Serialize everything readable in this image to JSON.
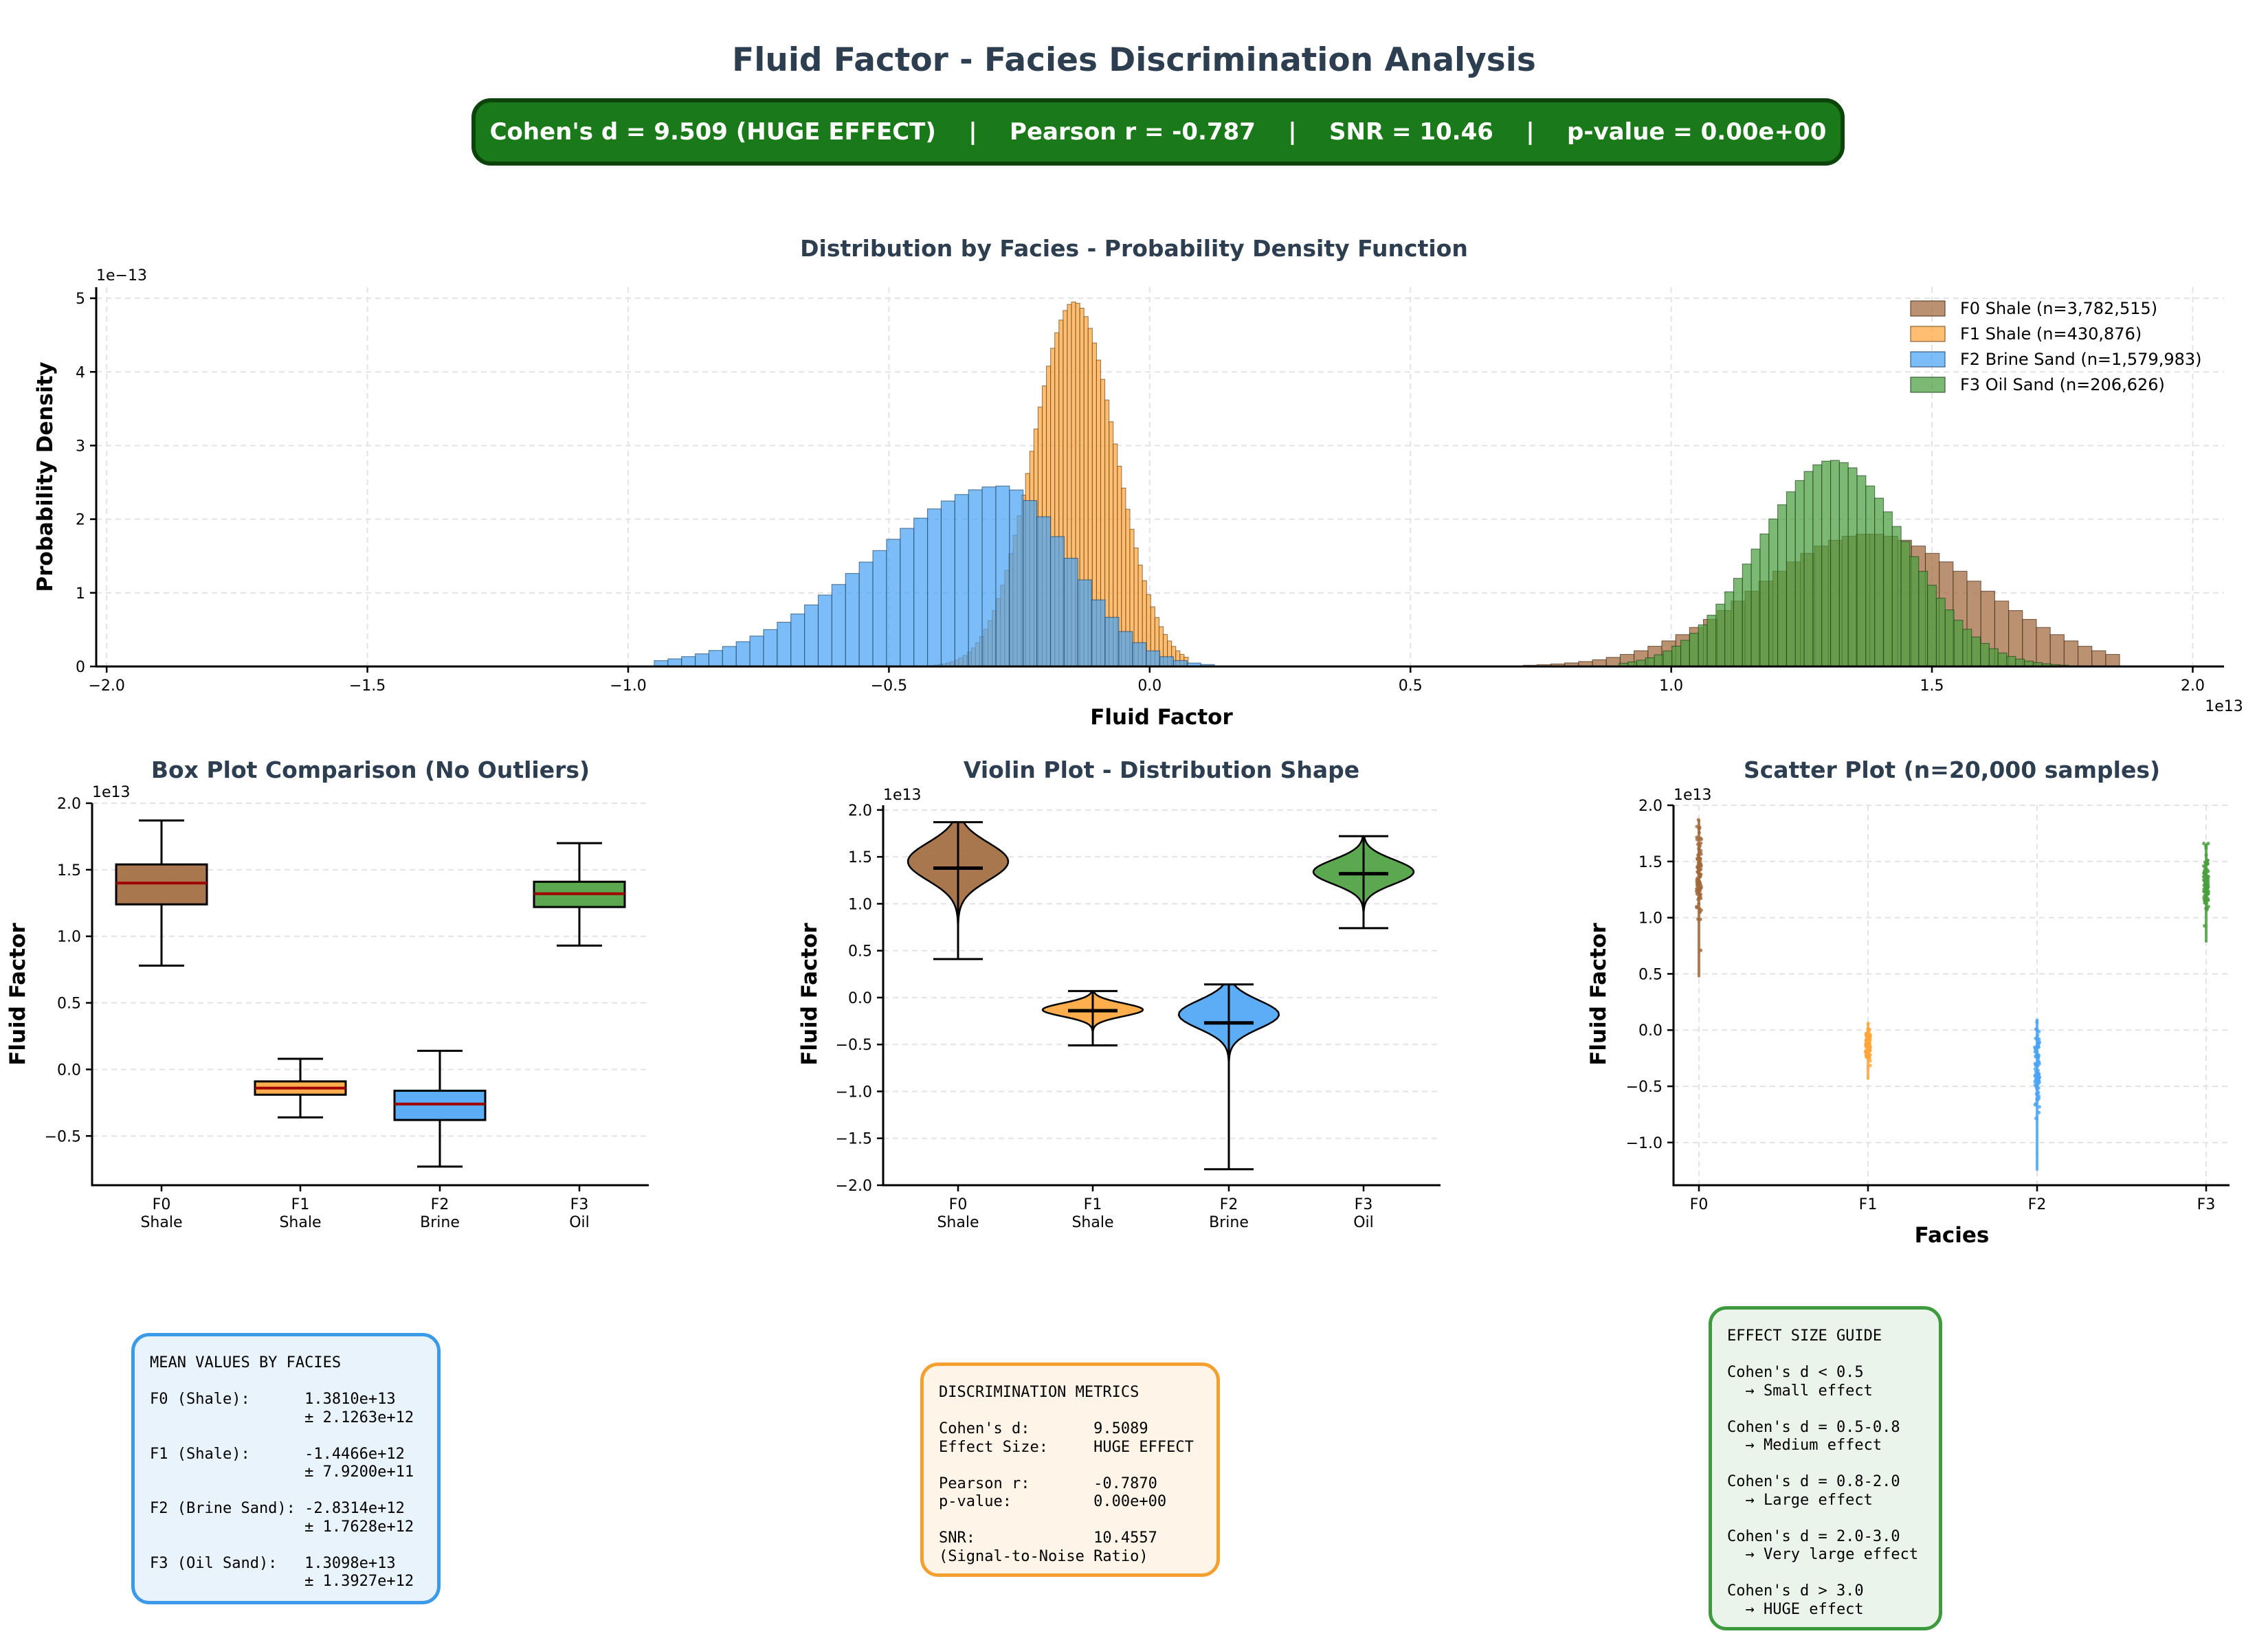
{
  "title": "Fluid Factor - Facies Discrimination Analysis",
  "banner": {
    "text": "Cohen's d = 9.509 (HUGE EFFECT)    |    Pearson r = -0.787    |    SNR = 10.46    |    p-value = 0.00e+00"
  },
  "colors": {
    "F0": "#a0683a",
    "F1": "#ffa53a",
    "F2": "#4aa3f5",
    "F3": "#4a9e3e",
    "median": "#a00000"
  },
  "chart_data": [
    {
      "type": "histogram",
      "title": "Distribution by Facies - Probability Density Function",
      "xlabel": "Fluid Factor",
      "ylabel": "Probability Density",
      "x_offset_label": "1e13",
      "y_offset_label": "1e−13",
      "xlim": [
        -2.02,
        2.06
      ],
      "ylim": [
        0,
        5.15
      ],
      "x_ticks": [
        -2.0,
        -1.5,
        -1.0,
        -0.5,
        0.0,
        0.5,
        1.0,
        1.5,
        2.0
      ],
      "x_tick_labels": [
        "−2.0",
        "−1.5",
        "−1.0",
        "−0.5",
        "0.0",
        "0.5",
        "1.0",
        "1.5",
        "2.0"
      ],
      "y_ticks": [
        0,
        1,
        2,
        3,
        4,
        5
      ],
      "y_tick_labels": [
        "0",
        "1",
        "2",
        "3",
        "4",
        "5"
      ],
      "grid": true,
      "legend_position": "top-right",
      "series": [
        {
          "id": "F0",
          "name": "F0 Shale (n=3,782,515)",
          "count": 3782515,
          "mean": 1.381,
          "std": 0.2126,
          "peak": 1.8,
          "range": [
            0.45,
            1.85
          ],
          "bin_width": 0.0266
        },
        {
          "id": "F1",
          "name": "F1 Shale (n=430,876)",
          "count": 430876,
          "mean": -0.1447,
          "std": 0.0792,
          "peak": 4.95,
          "range": [
            -0.55,
            0.07
          ],
          "bin_width": 0.008
        },
        {
          "id": "F2",
          "name": "F2 Brine Sand (n=1,579,983)",
          "count": 1579983,
          "mean": -0.2831,
          "std": 0.1763,
          "peak": 2.45,
          "range": [
            -0.95,
            0.1
          ],
          "bin_width": 0.0262,
          "skew": "left"
        },
        {
          "id": "F3",
          "name": "F3 Oil Sand (n=206,626)",
          "count": 206626,
          "mean": 1.3098,
          "std": 0.1393,
          "peak": 2.8,
          "range": [
            0.9,
            1.75
          ],
          "bin_width": 0.0169
        }
      ]
    },
    {
      "type": "box",
      "title": "Box Plot Comparison (No Outliers)",
      "ylabel": "Fluid Factor",
      "y_offset_label": "1e13",
      "ylim": [
        -0.87,
        2.0
      ],
      "y_ticks": [
        -0.5,
        0.0,
        0.5,
        1.0,
        1.5,
        2.0
      ],
      "y_tick_labels": [
        "−0.5",
        "0.0",
        "0.5",
        "1.0",
        "1.5",
        "2.0"
      ],
      "categories": [
        [
          "F0",
          "Shale"
        ],
        [
          "F1",
          "Shale"
        ],
        [
          "F2",
          "Brine"
        ],
        [
          "F3",
          "Oil"
        ]
      ],
      "boxes": [
        {
          "id": "F0",
          "whisker_low": 0.78,
          "q1": 1.24,
          "median": 1.4,
          "q3": 1.54,
          "whisker_high": 1.87
        },
        {
          "id": "F1",
          "whisker_low": -0.36,
          "q1": -0.19,
          "median": -0.14,
          "q3": -0.09,
          "whisker_high": 0.08
        },
        {
          "id": "F2",
          "whisker_low": -0.73,
          "q1": -0.38,
          "median": -0.26,
          "q3": -0.16,
          "whisker_high": 0.14
        },
        {
          "id": "F3",
          "whisker_low": 0.93,
          "q1": 1.22,
          "median": 1.32,
          "q3": 1.41,
          "whisker_high": 1.7
        }
      ]
    },
    {
      "type": "violin",
      "title": "Violin Plot - Distribution Shape",
      "ylabel": "Fluid Factor",
      "y_offset_label": "1e13",
      "ylim": [
        -2.0,
        2.05
      ],
      "y_ticks": [
        -2.0,
        -1.5,
        -1.0,
        -0.5,
        0.0,
        0.5,
        1.0,
        1.5,
        2.0
      ],
      "y_tick_labels": [
        "−2.0",
        "−1.5",
        "−1.0",
        "−0.5",
        "0.0",
        "0.5",
        "1.0",
        "1.5",
        "2.0"
      ],
      "categories": [
        [
          "F0",
          "Shale"
        ],
        [
          "F1",
          "Shale"
        ],
        [
          "F2",
          "Brine"
        ],
        [
          "F3",
          "Oil"
        ]
      ],
      "violins": [
        {
          "id": "F0",
          "min": 0.41,
          "max": 1.87,
          "mean": 1.38,
          "median": 1.38,
          "mode": 1.45,
          "spread": 0.2
        },
        {
          "id": "F1",
          "min": -0.51,
          "max": 0.07,
          "mean": -0.14,
          "median": -0.14,
          "mode": -0.13,
          "spread": 0.07
        },
        {
          "id": "F2",
          "min": -1.83,
          "max": 0.14,
          "mean": -0.27,
          "median": -0.27,
          "mode": -0.18,
          "spread": 0.15
        },
        {
          "id": "F3",
          "min": 0.74,
          "max": 1.72,
          "mean": 1.32,
          "median": 1.32,
          "mode": 1.34,
          "spread": 0.13
        }
      ]
    },
    {
      "type": "scatter",
      "title": "Scatter Plot (n=20,000 samples)",
      "xlabel": "Facies",
      "ylabel": "Fluid Factor",
      "y_offset_label": "1e13",
      "ylim": [
        -1.38,
        2.0
      ],
      "y_ticks": [
        -1.0,
        -0.5,
        0.0,
        0.5,
        1.0,
        1.5,
        2.0
      ],
      "y_tick_labels": [
        "−1.0",
        "−0.5",
        "0.0",
        "0.5",
        "1.0",
        "1.5",
        "2.0"
      ],
      "categories": [
        "F0",
        "F1",
        "F2",
        "F3"
      ],
      "clusters": [
        {
          "id": "F0",
          "min": 0.47,
          "max": 1.87,
          "mean": 1.38,
          "std": 0.21
        },
        {
          "id": "F1",
          "min": -0.44,
          "max": 0.06,
          "mean": -0.14,
          "std": 0.08
        },
        {
          "id": "F2",
          "min": -1.25,
          "max": 0.1,
          "mean": -0.28,
          "std": 0.18
        },
        {
          "id": "F3",
          "min": 0.78,
          "max": 1.66,
          "mean": 1.31,
          "std": 0.14
        }
      ]
    }
  ],
  "panels": {
    "means": {
      "text": "MEAN VALUES BY FACIES\n\nF0 (Shale):      1.3810e+13\n                 ± 2.1263e+12\n\nF1 (Shale):      -1.4466e+12\n                 ± 7.9200e+11\n\nF2 (Brine Sand): -2.8314e+12\n                 ± 1.7628e+12\n\nF3 (Oil Sand):   1.3098e+13\n                 ± 1.3927e+12"
    },
    "discrimination": {
      "text": "DISCRIMINATION METRICS\n\nCohen's d:       9.5089\nEffect Size:     HUGE EFFECT\n\nPearson r:       -0.7870\np-value:         0.00e+00\n\nSNR:             10.4557\n(Signal-to-Noise Ratio)"
    },
    "effect_guide": {
      "text": "EFFECT SIZE GUIDE\n\nCohen's d < 0.5\n  → Small effect\n\nCohen's d = 0.5-0.8\n  → Medium effect\n\nCohen's d = 0.8-2.0\n  → Large effect\n\nCohen's d = 2.0-3.0\n  → Very large effect\n\nCohen's d > 3.0\n  → HUGE effect"
    }
  }
}
